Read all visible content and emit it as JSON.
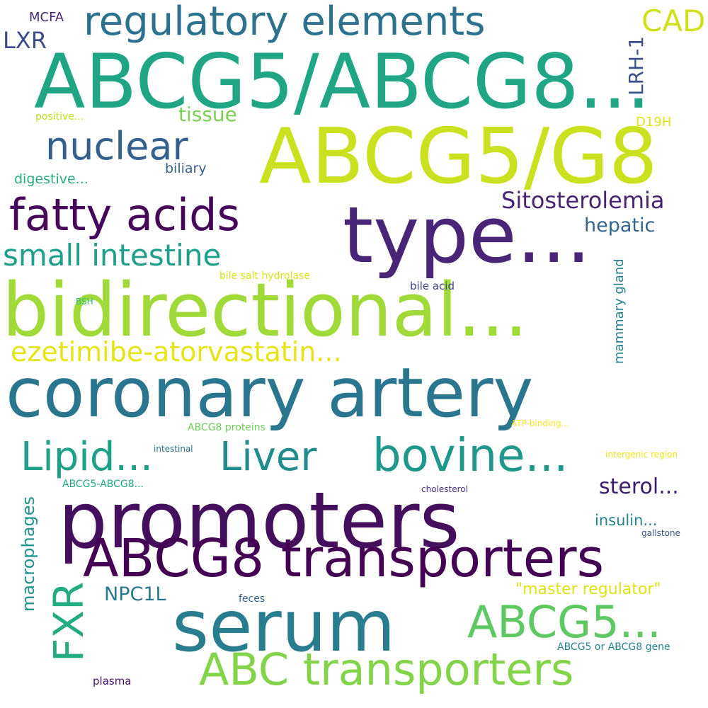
{
  "words": [
    {
      "text": "ABCG5/ABCG8...",
      "color": "#21a685"
    },
    {
      "text": "ABCG5/G8",
      "color": "#cae11f"
    },
    {
      "text": "type...",
      "color": "#482576"
    },
    {
      "text": "bidirectional...",
      "color": "#a0da39"
    },
    {
      "text": "coronary artery",
      "color": "#2a768e"
    },
    {
      "text": "promoters",
      "color": "#440f5c"
    },
    {
      "text": "ABCG8 transporters",
      "color": "#440154"
    },
    {
      "text": "serum",
      "color": "#287d8e"
    },
    {
      "text": "regulatory elements",
      "color": "#2c718e"
    },
    {
      "text": "fatty acids",
      "color": "#46075a"
    },
    {
      "text": "nuclear",
      "color": "#34608d"
    },
    {
      "text": "small intestine",
      "color": "#1f9e89"
    },
    {
      "text": "ezetimibe-atorvastatin...",
      "color": "#e5e419"
    },
    {
      "text": "Lipid...",
      "color": "#1fa187"
    },
    {
      "text": "Liver",
      "color": "#228c8d"
    },
    {
      "text": "bovine...",
      "color": "#1f988b"
    },
    {
      "text": "ABC transporters",
      "color": "#84d44b"
    },
    {
      "text": "ABCG5...",
      "color": "#5ec962"
    },
    {
      "text": "FXR",
      "color": "#25ab82"
    },
    {
      "text": "Sitosterolemia",
      "color": "#482475"
    },
    {
      "text": "CAD",
      "color": "#d0e11c"
    },
    {
      "text": "hepatic",
      "color": "#31668e"
    },
    {
      "text": "sterol...",
      "color": "#3b1c6e"
    },
    {
      "text": "tissue",
      "color": "#7ad151"
    },
    {
      "text": "macrophages",
      "color": "#21918c"
    },
    {
      "text": "LXR",
      "color": "#3e4a89"
    },
    {
      "text": "LRH-1",
      "color": "#3b528b"
    },
    {
      "text": "NPC1L",
      "color": "#2a788e"
    },
    {
      "text": "\"master regulator\"",
      "color": "#dde318"
    },
    {
      "text": "insulin...",
      "color": "#26828e"
    },
    {
      "text": "biliary",
      "color": "#355f8d"
    },
    {
      "text": "digestive...",
      "color": "#27ad81"
    },
    {
      "text": "mammary gland",
      "color": "#27808e"
    },
    {
      "text": "D19H",
      "color": "#e2e418"
    },
    {
      "text": "MCFA",
      "color": "#482878"
    },
    {
      "text": "positive...",
      "color": "#c2df23"
    },
    {
      "text": "bile salt hydrolase",
      "color": "#d8e219"
    },
    {
      "text": "bile acid",
      "color": "#414487"
    },
    {
      "text": "BSH",
      "color": "#35b779"
    },
    {
      "text": "ABCG8 proteins",
      "color": "#6ccd5a"
    },
    {
      "text": "ATP-binding...",
      "color": "#fde725"
    },
    {
      "text": "intestinal",
      "color": "#2d708e"
    },
    {
      "text": "intergenic region",
      "color": "#efe51c"
    },
    {
      "text": "ABCG5-ABCG8...",
      "color": "#22a884"
    },
    {
      "text": "cholesterol",
      "color": "#46327e"
    },
    {
      "text": "gallstone",
      "color": "#3a538b"
    },
    {
      "text": "feces",
      "color": "#33638d"
    },
    {
      "text": "ABCG5 or ABCG8 gene",
      "color": "#25858e"
    },
    {
      "text": "plasma",
      "color": "#471063"
    }
  ]
}
